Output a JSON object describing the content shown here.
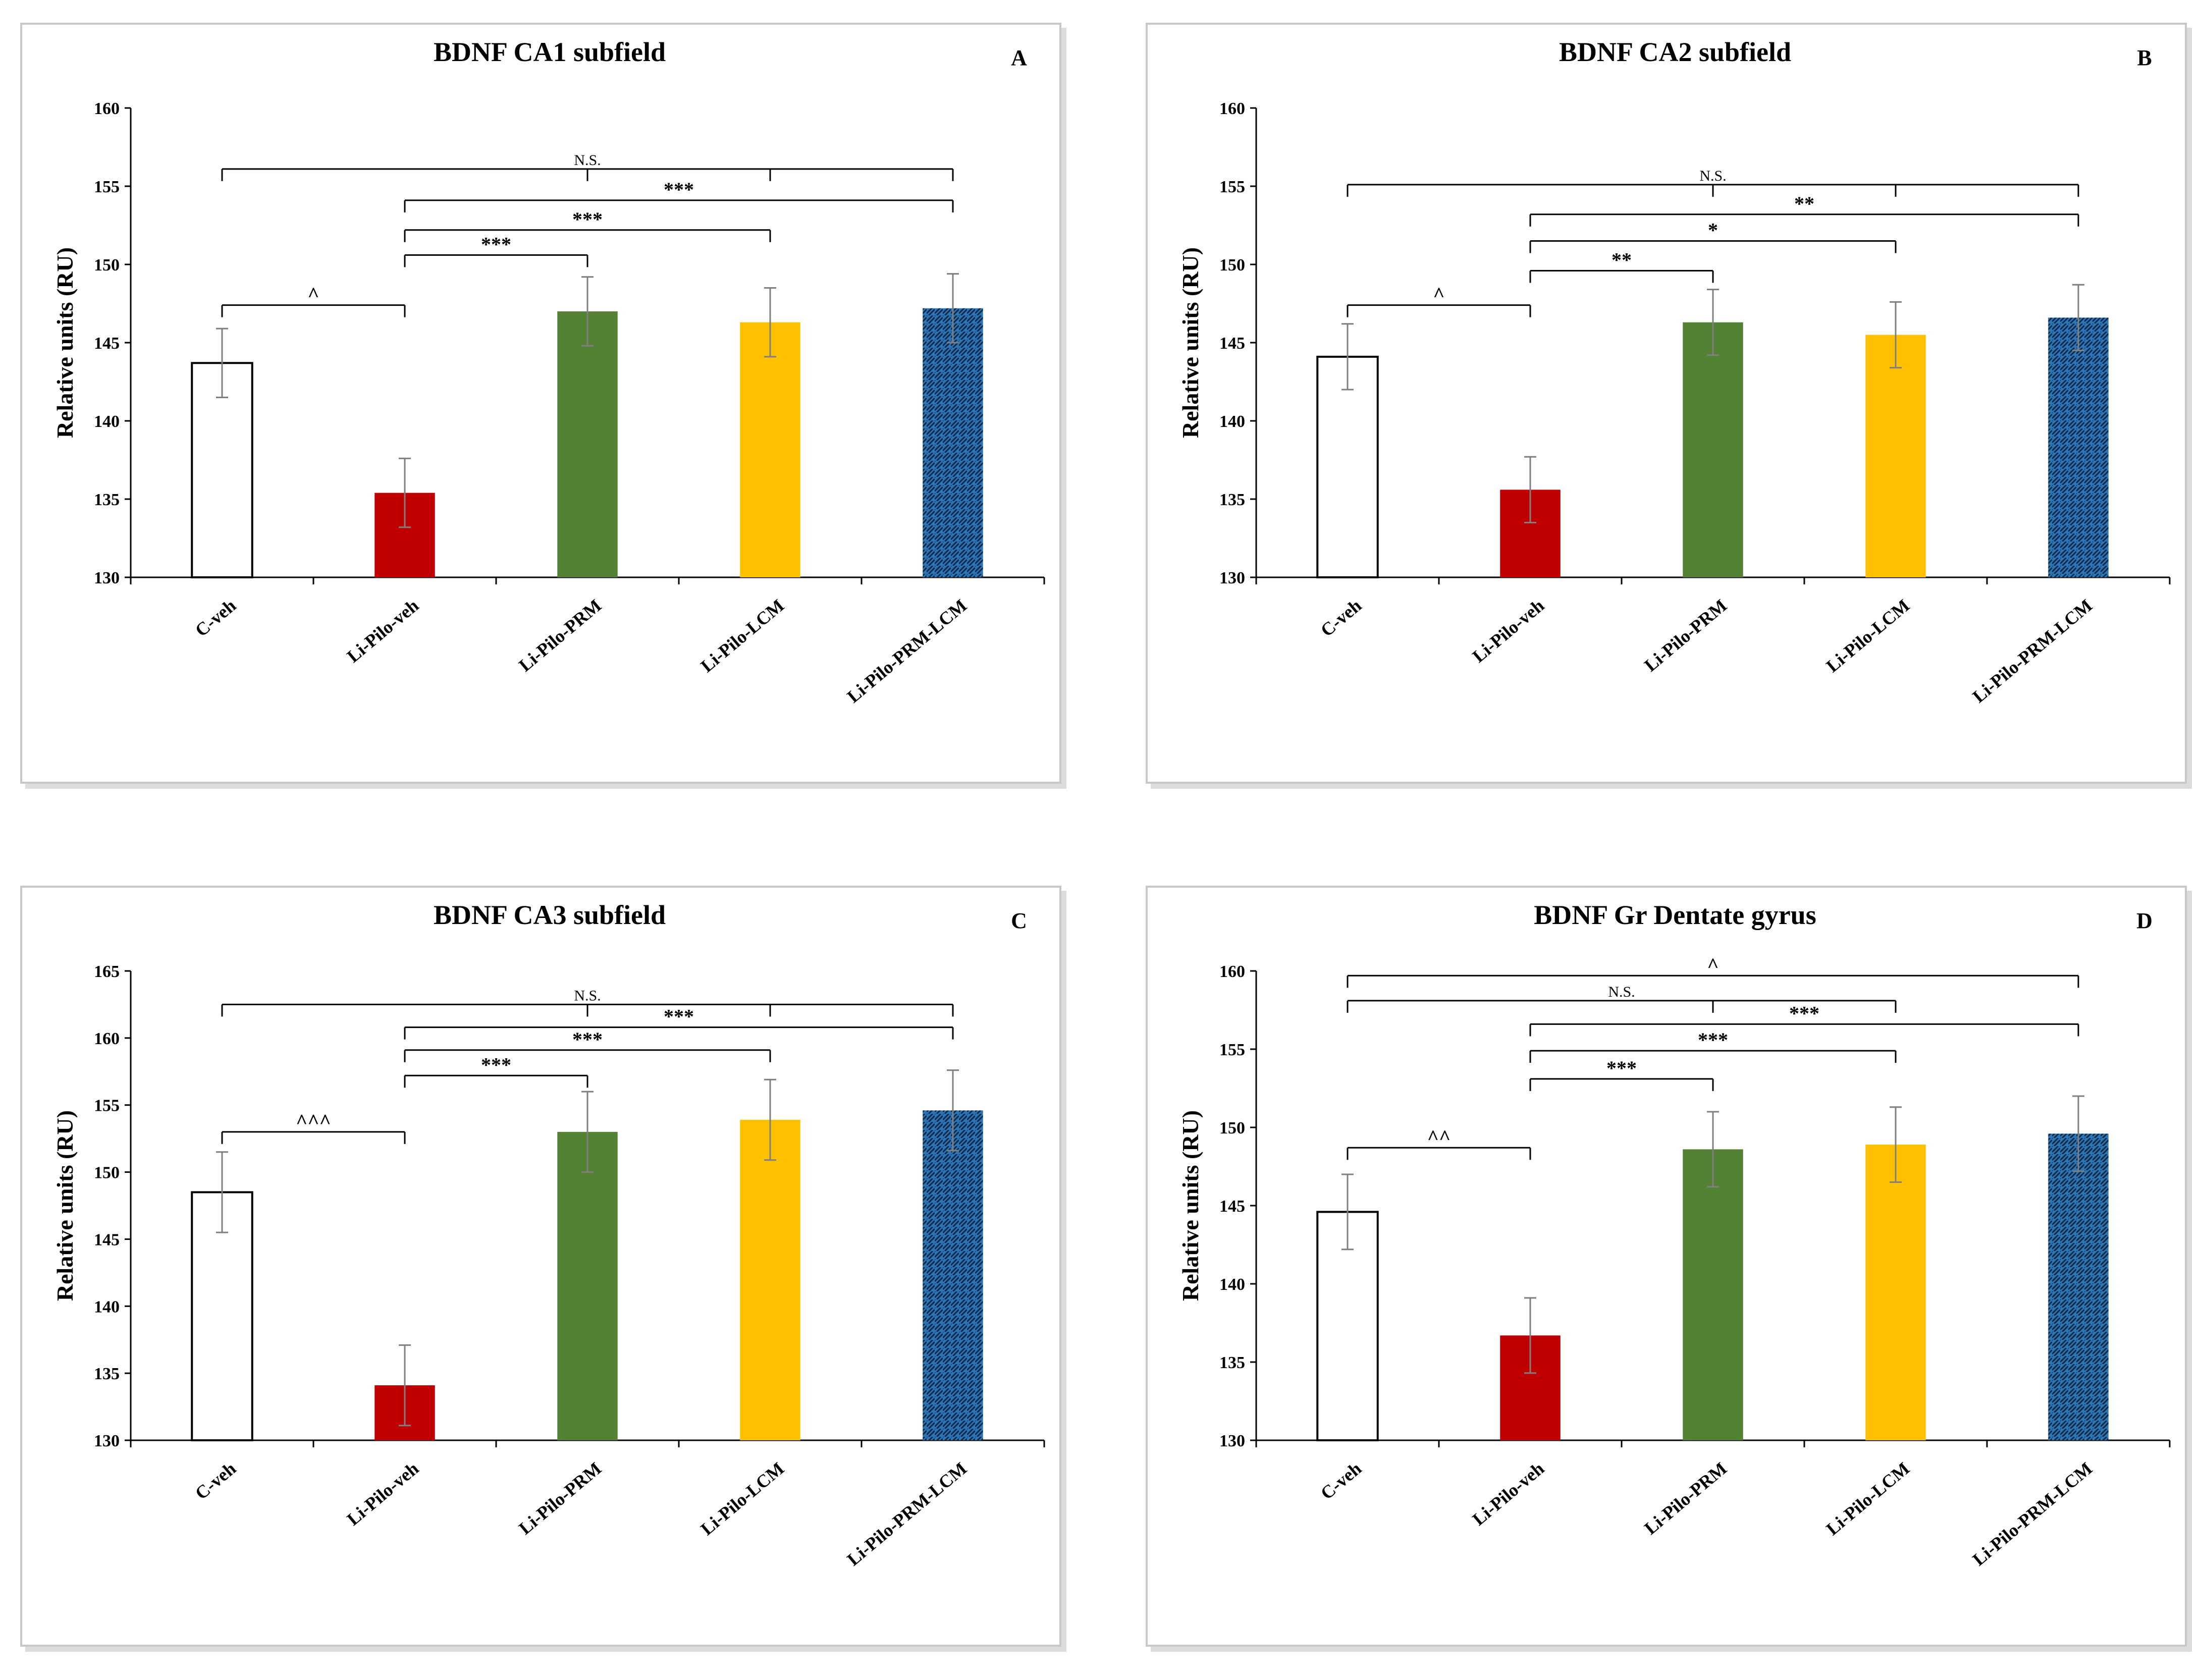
{
  "figure": {
    "panel_count": 4
  },
  "colors": {
    "c_veh": "#ffffff",
    "li_pilo_veh": "#c00000",
    "li_pilo_prm": "#548235",
    "li_pilo_lcm": "#ffc000",
    "li_pilo_prm_lcm": "#2e75b6",
    "axis": "#555555",
    "error": "#7f7f7f",
    "bracket": "#000000"
  },
  "chart_data": [
    {
      "type": "bar",
      "panel_letter": "A",
      "title": "BDNF  CA1 subfield",
      "ylabel": "Relative units (RU)",
      "xlabel": "",
      "ylim": [
        130,
        160
      ],
      "yticks": [
        "130",
        "135",
        "140",
        "145",
        "150",
        "155",
        "160"
      ],
      "categories": [
        "C-veh",
        "Li-Pilo-veh",
        "Li-Pilo-PRM",
        "Li-Pilo-LCM",
        "Li-Pilo-PRM-LCM"
      ],
      "values": [
        143.7,
        135.4,
        147.0,
        146.3,
        147.2
      ],
      "errors": [
        2.2,
        2.2,
        2.2,
        2.2,
        2.2
      ],
      "comparisons": [
        {
          "from": 0,
          "to": 1,
          "y": 147.4,
          "label": "^",
          "mid": []
        },
        {
          "from": 1,
          "to": 2,
          "y": 150.6,
          "label": "***",
          "mid": []
        },
        {
          "from": 1,
          "to": 3,
          "y": 152.2,
          "label": "***",
          "mid": []
        },
        {
          "from": 1,
          "to": 4,
          "y": 154.1,
          "label": "***",
          "mid": []
        },
        {
          "from": 0,
          "to": 4,
          "y": 156.1,
          "label": "N.S.",
          "mid": [
            2,
            3
          ]
        }
      ]
    },
    {
      "type": "bar",
      "panel_letter": "B",
      "title": "BDNF  CA2 subfield",
      "ylabel": "Relative units (RU)",
      "xlabel": "",
      "ylim": [
        130,
        160
      ],
      "yticks": [
        "130",
        "135",
        "140",
        "145",
        "150",
        "155",
        "160"
      ],
      "categories": [
        "C-veh",
        "Li-Pilo-veh",
        "Li-Pilo-PRM",
        "Li-Pilo-LCM",
        "Li-Pilo-PRM-LCM"
      ],
      "values": [
        144.1,
        135.6,
        146.3,
        145.5,
        146.6
      ],
      "errors": [
        2.1,
        2.1,
        2.1,
        2.1,
        2.1
      ],
      "comparisons": [
        {
          "from": 0,
          "to": 1,
          "y": 147.4,
          "label": "^",
          "mid": []
        },
        {
          "from": 1,
          "to": 2,
          "y": 149.6,
          "label": "**",
          "mid": []
        },
        {
          "from": 1,
          "to": 3,
          "y": 151.5,
          "label": "*",
          "mid": []
        },
        {
          "from": 1,
          "to": 4,
          "y": 153.2,
          "label": "**",
          "mid": []
        },
        {
          "from": 0,
          "to": 4,
          "y": 155.1,
          "label": "N.S.",
          "mid": [
            2,
            3
          ]
        }
      ]
    },
    {
      "type": "bar",
      "panel_letter": "C",
      "title": "BDNF  CA3 subfield",
      "ylabel": "Relative units (RU)",
      "xlabel": "",
      "ylim": [
        130,
        165
      ],
      "yticks": [
        "130",
        "135",
        "140",
        "145",
        "150",
        "155",
        "160",
        "165"
      ],
      "categories": [
        "C-veh",
        "Li-Pilo-veh",
        "Li-Pilo-PRM",
        "Li-Pilo-LCM",
        "Li-Pilo-PRM-LCM"
      ],
      "values": [
        148.5,
        134.1,
        153.0,
        153.9,
        154.6
      ],
      "errors": [
        3.0,
        3.0,
        3.0,
        3.0,
        3.0
      ],
      "comparisons": [
        {
          "from": 0,
          "to": 1,
          "y": 153.0,
          "label": "^^^",
          "mid": []
        },
        {
          "from": 1,
          "to": 2,
          "y": 157.2,
          "label": "***",
          "mid": []
        },
        {
          "from": 1,
          "to": 3,
          "y": 159.1,
          "label": "***",
          "mid": []
        },
        {
          "from": 1,
          "to": 4,
          "y": 160.8,
          "label": "***",
          "mid": []
        },
        {
          "from": 0,
          "to": 4,
          "y": 162.5,
          "label": "N.S.",
          "mid": [
            2,
            3
          ]
        }
      ]
    },
    {
      "type": "bar",
      "panel_letter": "D",
      "title": "BDNF Gr Dentate gyrus",
      "ylabel": "Relative units (RU)",
      "xlabel": "",
      "ylim": [
        130,
        160
      ],
      "yticks": [
        "130",
        "135",
        "140",
        "145",
        "150",
        "155",
        "160"
      ],
      "categories": [
        "C-veh",
        "Li-Pilo-veh",
        "Li-Pilo-PRM",
        "Li-Pilo-LCM",
        "Li-Pilo-PRM-LCM"
      ],
      "values": [
        144.6,
        136.7,
        148.6,
        148.9,
        149.6
      ],
      "errors": [
        2.4,
        2.4,
        2.4,
        2.4,
        2.4
      ],
      "comparisons": [
        {
          "from": 0,
          "to": 1,
          "y": 148.7,
          "label": "^^",
          "mid": []
        },
        {
          "from": 1,
          "to": 2,
          "y": 153.1,
          "label": "***",
          "mid": []
        },
        {
          "from": 1,
          "to": 3,
          "y": 154.9,
          "label": "***",
          "mid": []
        },
        {
          "from": 1,
          "to": 4,
          "y": 156.6,
          "label": "***",
          "mid": []
        },
        {
          "from": 0,
          "to": 3,
          "y": 158.1,
          "label": "N.S.",
          "mid": [
            2
          ]
        },
        {
          "from": 0,
          "to": 4,
          "y": 159.7,
          "label": "^",
          "mid": []
        }
      ]
    }
  ]
}
